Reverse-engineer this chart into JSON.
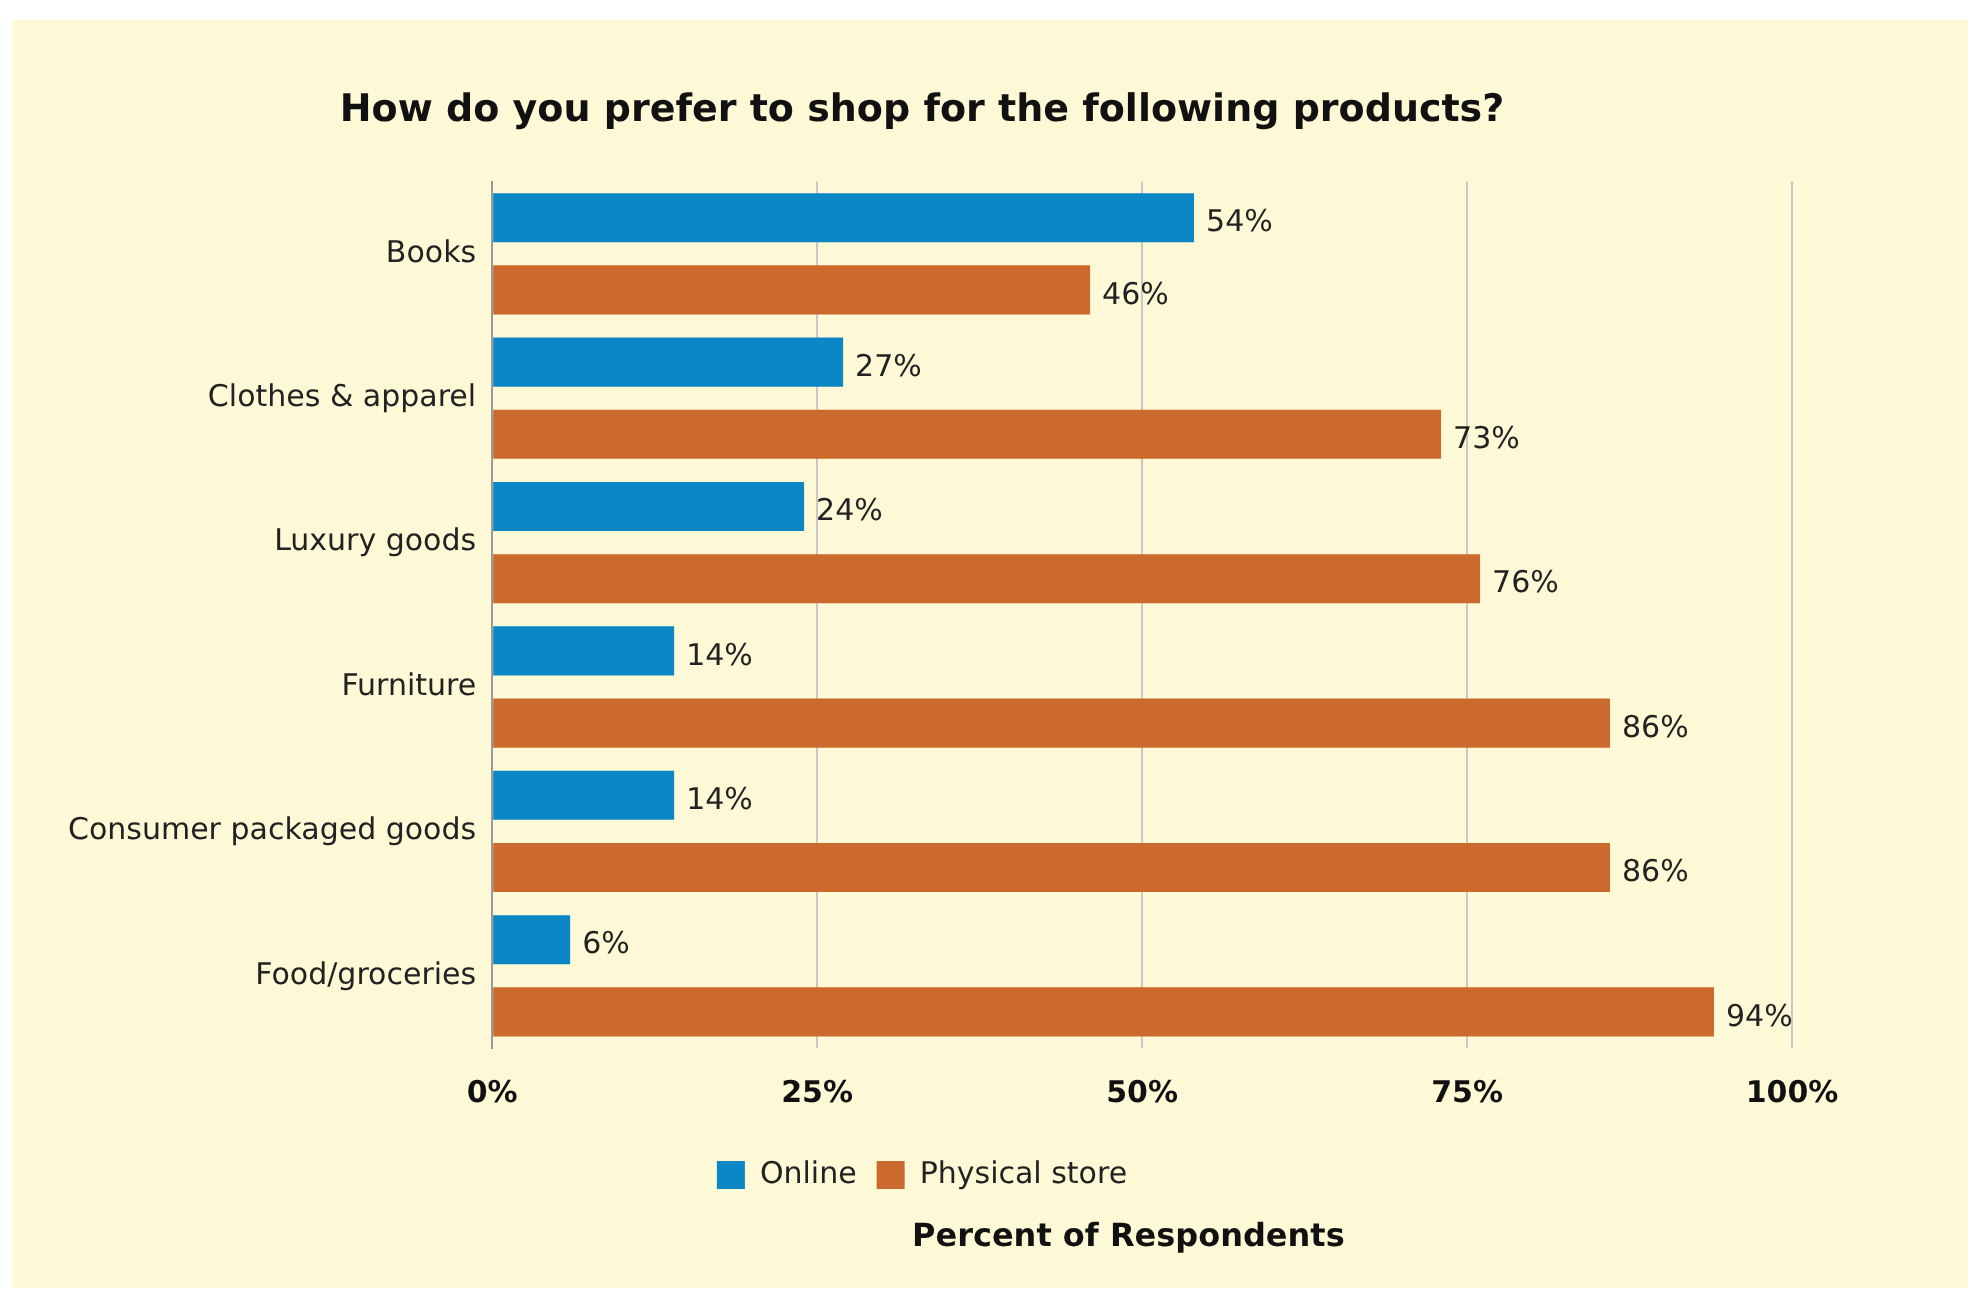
{
  "chart_data": {
    "type": "bar",
    "orientation": "horizontal",
    "title": "How do you prefer to shop for the following products?",
    "xlabel": "Percent of Respondents",
    "categories": [
      "Books",
      "Clothes & apparel",
      "Luxury goods",
      "Furniture",
      "Consumer packaged goods",
      "Food/groceries"
    ],
    "series": [
      {
        "name": "Online",
        "color": "#0a87c4",
        "values": [
          54,
          27,
          24,
          14,
          14,
          6
        ],
        "value_labels": [
          "54%",
          "27%",
          "24%",
          "14%",
          "14%",
          "6%"
        ]
      },
      {
        "name": "Physical store",
        "color": "#cc6a2e",
        "values": [
          46,
          73,
          76,
          86,
          86,
          94
        ],
        "value_labels": [
          "46%",
          "73%",
          "76%",
          "86%",
          "86%",
          "94%"
        ]
      }
    ],
    "xlim": [
      0,
      100
    ],
    "xticks": [
      {
        "value": 0,
        "label": "0%"
      },
      {
        "value": 25,
        "label": "25%"
      },
      {
        "value": 50,
        "label": "50%"
      },
      {
        "value": 75,
        "label": "75%"
      },
      {
        "value": 100,
        "label": "100%"
      }
    ],
    "grid": "x",
    "legend": "bottom"
  }
}
